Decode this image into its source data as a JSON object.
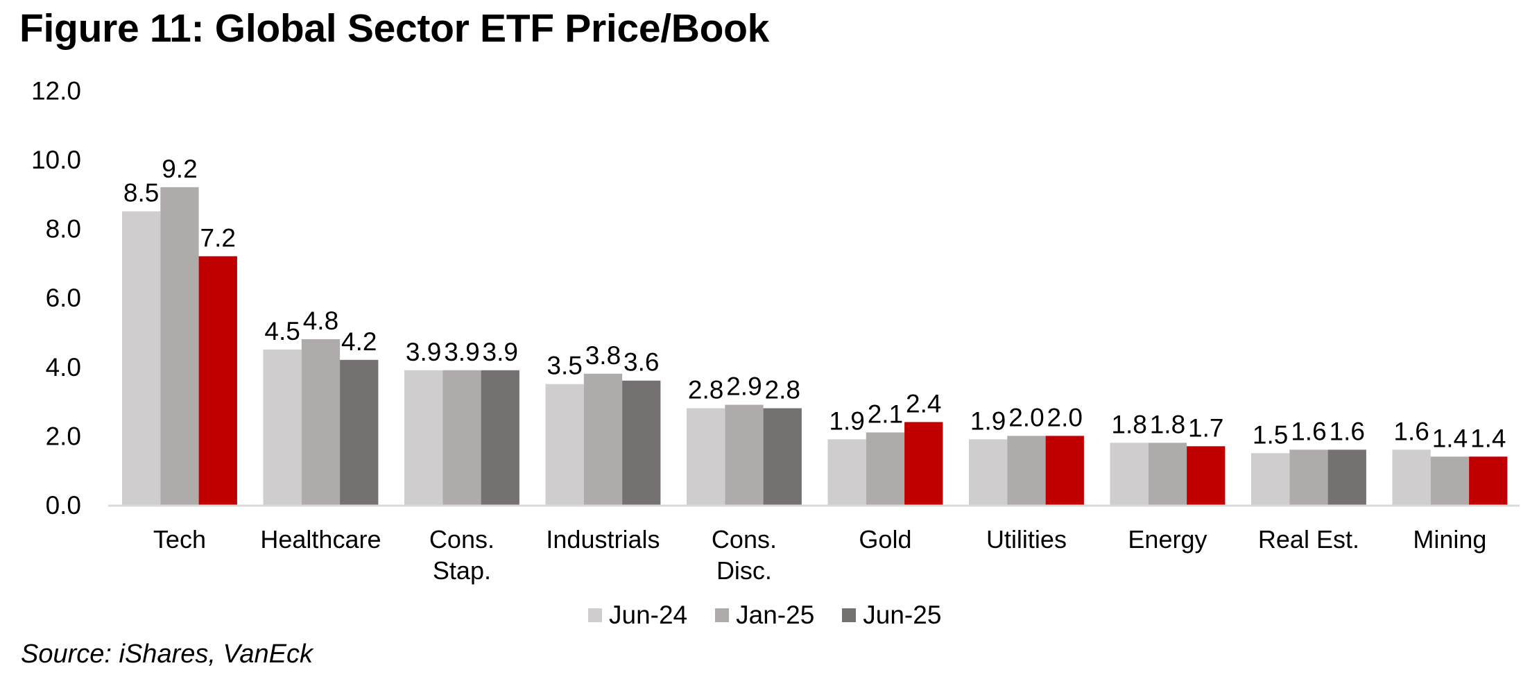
{
  "title": "Figure 11: Global Sector ETF Price/Book",
  "source": "Source: iShares, VanEck",
  "colors": {
    "jun24": "#CFCDCE",
    "jan25": "#AFABAB",
    "jun25_default": "#767171",
    "jun25_highlight": "#C00000",
    "axis": "#D9D9D9"
  },
  "legend": [
    {
      "label": "Jun-24",
      "color": "#CFCDCE"
    },
    {
      "label": "Jan-25",
      "color": "#AFABAB"
    },
    {
      "label": "Jun-25",
      "color": "#767171"
    }
  ],
  "chart_data": {
    "type": "bar",
    "title": "Figure 11: Global Sector ETF Price/Book",
    "xlabel": "",
    "ylabel": "",
    "ylim": [
      0,
      12
    ],
    "yticks": [
      "0.0",
      "2.0",
      "4.0",
      "6.0",
      "8.0",
      "10.0",
      "12.0"
    ],
    "grid": false,
    "legend_position": "bottom",
    "categories": [
      [
        "Tech"
      ],
      [
        "Healthcare"
      ],
      [
        "Cons.",
        "Stap."
      ],
      [
        "Industrials"
      ],
      [
        "Cons.",
        "Disc."
      ],
      [
        "Gold"
      ],
      [
        "Utilities"
      ],
      [
        "Energy"
      ],
      [
        "Real Est."
      ],
      [
        "Mining"
      ]
    ],
    "series": [
      {
        "name": "Jun-24",
        "values": [
          8.5,
          4.5,
          3.9,
          3.5,
          2.8,
          1.9,
          1.9,
          1.8,
          1.5,
          1.6
        ]
      },
      {
        "name": "Jan-25",
        "values": [
          9.2,
          4.8,
          3.9,
          3.8,
          2.9,
          2.1,
          2.0,
          1.8,
          1.6,
          1.4
        ]
      },
      {
        "name": "Jun-25",
        "values": [
          7.2,
          4.2,
          3.9,
          3.6,
          2.8,
          2.4,
          2.0,
          1.7,
          1.6,
          1.4
        ],
        "highlighted": [
          true,
          false,
          false,
          false,
          false,
          true,
          true,
          true,
          false,
          true
        ]
      }
    ],
    "data_labels": [
      [
        "8.5",
        "4.5",
        "3.9",
        "3.5",
        "2.8",
        "1.9",
        "1.9",
        "1.8",
        "1.5",
        "1.6"
      ],
      [
        "9.2",
        "4.8",
        "3.9",
        "3.8",
        "2.9",
        "2.1",
        "2.0",
        "1.8",
        "1.6",
        "1.4"
      ],
      [
        "7.2",
        "4.2",
        "3.9",
        "3.6",
        "2.8",
        "2.4",
        "2.0",
        "1.7",
        "1.6",
        "1.4"
      ]
    ]
  }
}
